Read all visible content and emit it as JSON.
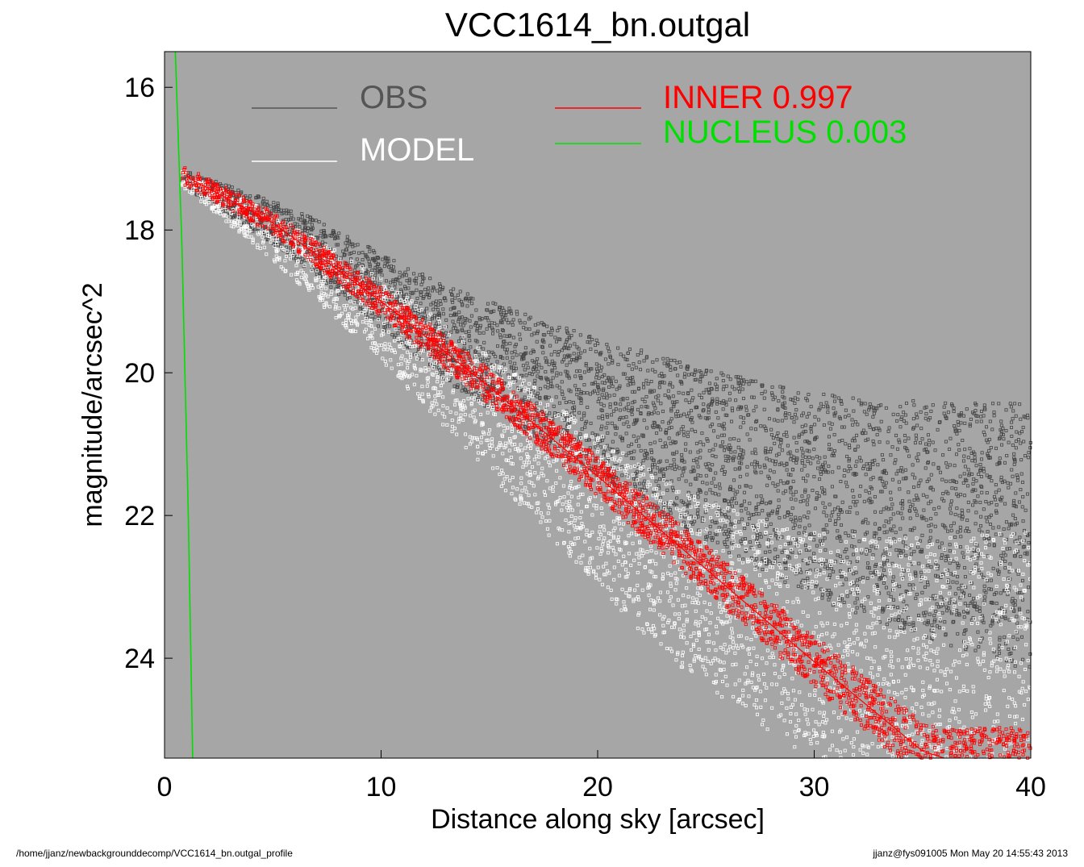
{
  "chart_data": {
    "type": "scatter",
    "title": "VCC1614_bn.outgal",
    "xlabel": "Distance along sky [arcsec]",
    "ylabel": "magnitude/arcsec^2",
    "xlim": [
      0,
      40
    ],
    "ylim": [
      25.4,
      15.5
    ],
    "y_inverted": true,
    "xticks": [
      "0",
      "10",
      "20",
      "30",
      "40"
    ],
    "xtick_values": [
      0,
      10,
      20,
      30,
      40
    ],
    "yticks": [
      "16",
      "18",
      "20",
      "22",
      "24"
    ],
    "ytick_values": [
      16,
      18,
      20,
      22,
      24
    ],
    "background_color": "#a6a6a6",
    "grid": false,
    "legend": [
      {
        "label": "OBS",
        "color": "#555555"
      },
      {
        "label": "MODEL",
        "color": "#ffffff"
      },
      {
        "label": "INNER  0.997",
        "color": "#ff0000"
      },
      {
        "label": "NUCLEUS  0.003",
        "color": "#00e000"
      }
    ],
    "series": [
      {
        "name": "OBS",
        "color": "#454545",
        "x": [
          1,
          3,
          5,
          7,
          10,
          13,
          16,
          19,
          22,
          25,
          28,
          31,
          34,
          37,
          40
        ],
        "y": [
          17.3,
          17.6,
          17.9,
          18.25,
          18.85,
          19.45,
          19.9,
          20.35,
          20.75,
          21.15,
          21.5,
          21.8,
          22.0,
          22.15,
          22.3
        ]
      },
      {
        "name": "MODEL",
        "color": "#ffffff",
        "x": [
          1,
          3,
          5,
          7,
          10,
          13,
          16,
          19,
          22,
          25,
          28,
          31,
          34,
          37,
          40
        ],
        "y": [
          17.3,
          17.7,
          18.1,
          18.55,
          19.25,
          20.05,
          20.85,
          21.65,
          22.45,
          23.1,
          23.6,
          23.9,
          24.1,
          24.2,
          24.3
        ]
      },
      {
        "name": "INNER",
        "color": "#ff0000",
        "x": [
          1,
          5,
          10,
          15,
          20,
          25,
          30,
          35,
          36
        ],
        "y": [
          17.25,
          17.9,
          19.0,
          20.2,
          21.45,
          22.75,
          24.05,
          25.3,
          25.4
        ]
      },
      {
        "name": "NUCLEUS",
        "color": "#00e000",
        "x": [
          0.5,
          0.8,
          1.1,
          1.3
        ],
        "y": [
          15.5,
          18.2,
          22.0,
          25.4
        ]
      }
    ]
  },
  "footer": {
    "path": "/home/jjanz/newbackgrounddecomp/VCC1614_bn.outgal_profile",
    "stamp": "jjanz@fys091005  Mon May 20 14:55:43 2013"
  }
}
